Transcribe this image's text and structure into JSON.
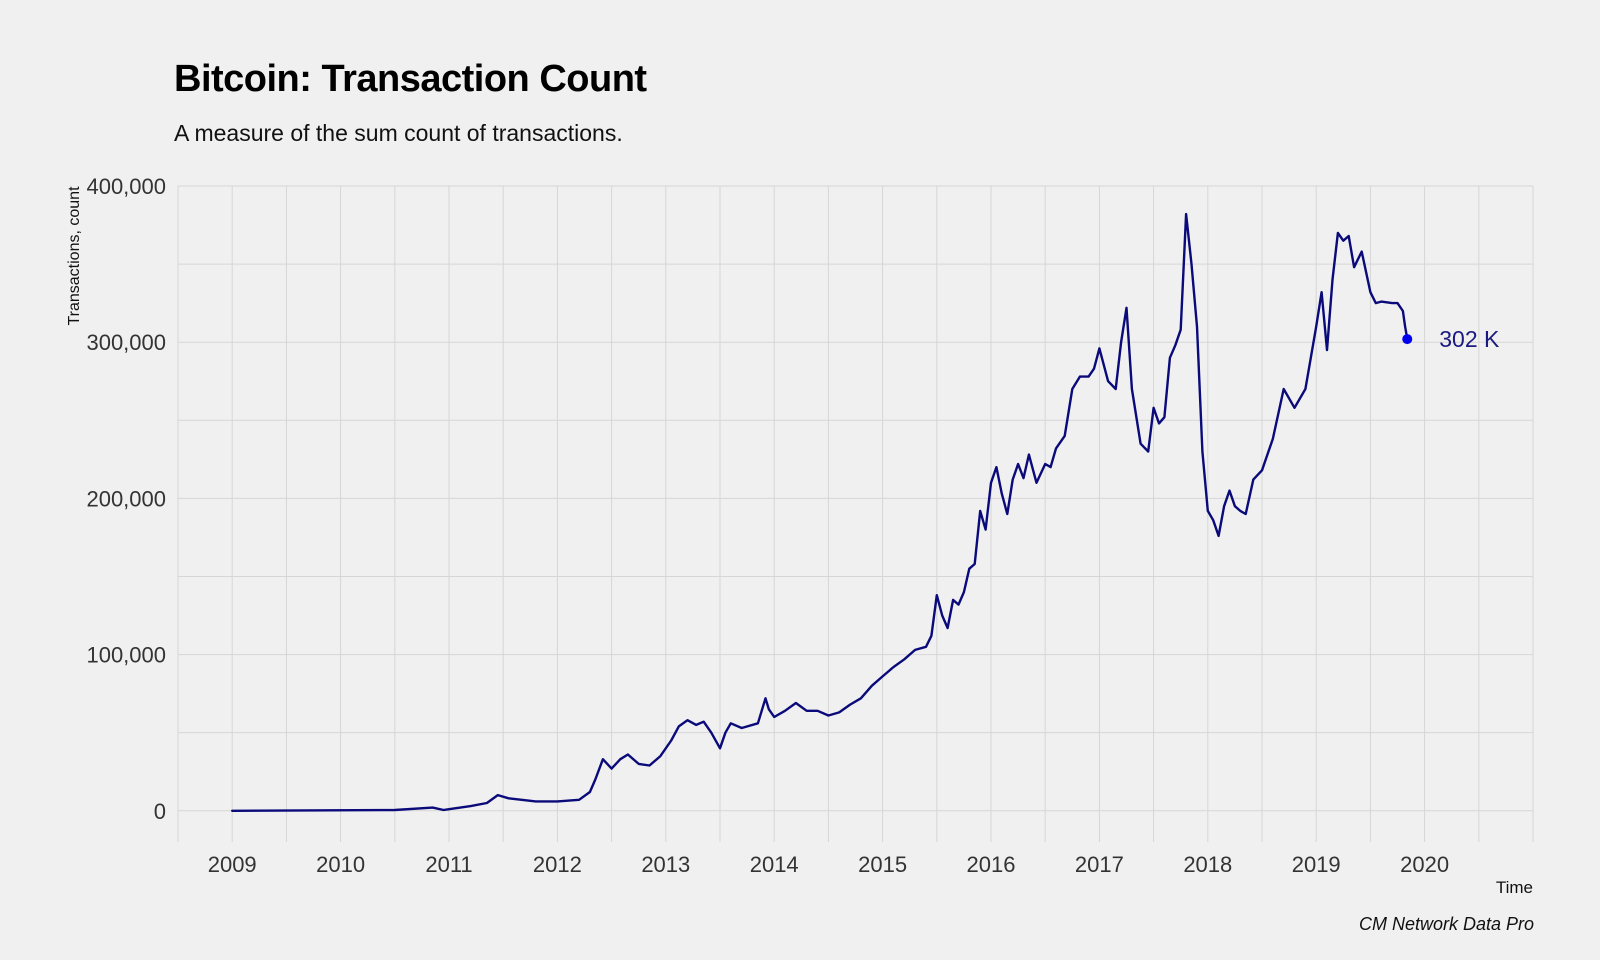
{
  "title": "Bitcoin: Transaction Count",
  "subtitle": "A measure of the sum count of transactions.",
  "caption": "CM Network Data Pro",
  "colors": {
    "background": "#f0f0f0",
    "grid": "#d6d6d6",
    "line": "#0a0a7a",
    "last_point": "#0000ee",
    "label": "#1a1a80"
  },
  "chart_data": {
    "type": "line",
    "title": "Bitcoin: Transaction Count",
    "subtitle": "A measure of the sum count of transactions.",
    "xlabel": "Time",
    "ylabel": "Transactions, count",
    "xlim": [
      2008.5,
      2021.0
    ],
    "ylim": [
      -20000,
      400000
    ],
    "xticks": [
      2009,
      2010,
      2011,
      2012,
      2013,
      2014,
      2015,
      2016,
      2017,
      2018,
      2019,
      2020
    ],
    "xtick_labels": [
      "2009",
      "2010",
      "2011",
      "2012",
      "2013",
      "2014",
      "2015",
      "2016",
      "2017",
      "2018",
      "2019",
      "2020"
    ],
    "yticks": [
      0,
      100000,
      200000,
      300000,
      400000
    ],
    "ytick_labels": [
      "0",
      "100,000",
      "200,000",
      "300,000",
      "400,000"
    ],
    "grid": true,
    "last_value_label": "302 K",
    "series": [
      {
        "x": [
          2009.0,
          2010.5,
          2010.85,
          2010.95,
          2011.0,
          2011.2,
          2011.35,
          2011.45,
          2011.55,
          2011.8,
          2012.0,
          2012.2,
          2012.3,
          2012.35,
          2012.42,
          2012.5,
          2012.58,
          2012.65,
          2012.75,
          2012.85,
          2012.95,
          2013.05,
          2013.12,
          2013.2,
          2013.28,
          2013.35,
          2013.42,
          2013.5,
          2013.55,
          2013.6,
          2013.7,
          2013.85,
          2013.92,
          2013.95,
          2014.0,
          2014.1,
          2014.2,
          2014.3,
          2014.4,
          2014.5,
          2014.6,
          2014.7,
          2014.8,
          2014.9,
          2015.0,
          2015.1,
          2015.2,
          2015.3,
          2015.4,
          2015.45,
          2015.5,
          2015.55,
          2015.6,
          2015.65,
          2015.7,
          2015.75,
          2015.8,
          2015.85,
          2015.9,
          2015.95,
          2016.0,
          2016.05,
          2016.1,
          2016.15,
          2016.2,
          2016.25,
          2016.3,
          2016.35,
          2016.42,
          2016.5,
          2016.55,
          2016.6,
          2016.68,
          2016.75,
          2016.82,
          2016.9,
          2016.95,
          2017.0,
          2017.08,
          2017.15,
          2017.2,
          2017.25,
          2017.3,
          2017.38,
          2017.45,
          2017.5,
          2017.55,
          2017.6,
          2017.65,
          2017.7,
          2017.75,
          2017.8,
          2017.85,
          2017.9,
          2017.95,
          2018.0,
          2018.05,
          2018.1,
          2018.15,
          2018.2,
          2018.25,
          2018.3,
          2018.35,
          2018.42,
          2018.5,
          2018.55,
          2018.6,
          2018.7,
          2018.8,
          2018.9,
          2018.95,
          2019.0,
          2019.05,
          2019.1,
          2019.15,
          2019.2,
          2019.25,
          2019.3,
          2019.35,
          2019.42,
          2019.5,
          2019.55,
          2019.6,
          2019.7,
          2019.75,
          2019.8,
          2019.82,
          2019.84
        ],
        "y": [
          0,
          500,
          2000,
          500,
          1000,
          3000,
          5000,
          10000,
          8000,
          6000,
          6000,
          7000,
          12000,
          20000,
          33000,
          27000,
          33000,
          36000,
          30000,
          29000,
          35000,
          45000,
          54000,
          58000,
          55000,
          57000,
          50000,
          40000,
          50000,
          56000,
          53000,
          56000,
          72000,
          65000,
          60000,
          64000,
          69000,
          64000,
          64000,
          61000,
          63000,
          68000,
          72000,
          80000,
          86000,
          92000,
          97000,
          103000,
          105000,
          112000,
          138000,
          125000,
          117000,
          135000,
          132000,
          140000,
          155000,
          158000,
          192000,
          180000,
          210000,
          220000,
          203000,
          190000,
          212000,
          222000,
          213000,
          228000,
          210000,
          222000,
          220000,
          232000,
          240000,
          270000,
          278000,
          278000,
          283000,
          296000,
          275000,
          270000,
          300000,
          322000,
          270000,
          235000,
          230000,
          258000,
          248000,
          252000,
          290000,
          298000,
          308000,
          382000,
          350000,
          310000,
          230000,
          192000,
          186000,
          176000,
          195000,
          205000,
          195000,
          192000,
          190000,
          212000,
          218000,
          228000,
          238000,
          270000,
          258000,
          270000,
          290000,
          310000,
          332000,
          295000,
          340000,
          370000,
          365000,
          368000,
          348000,
          358000,
          332000,
          325000,
          326000,
          325000,
          325000,
          320000,
          310000,
          302000
        ]
      }
    ]
  }
}
